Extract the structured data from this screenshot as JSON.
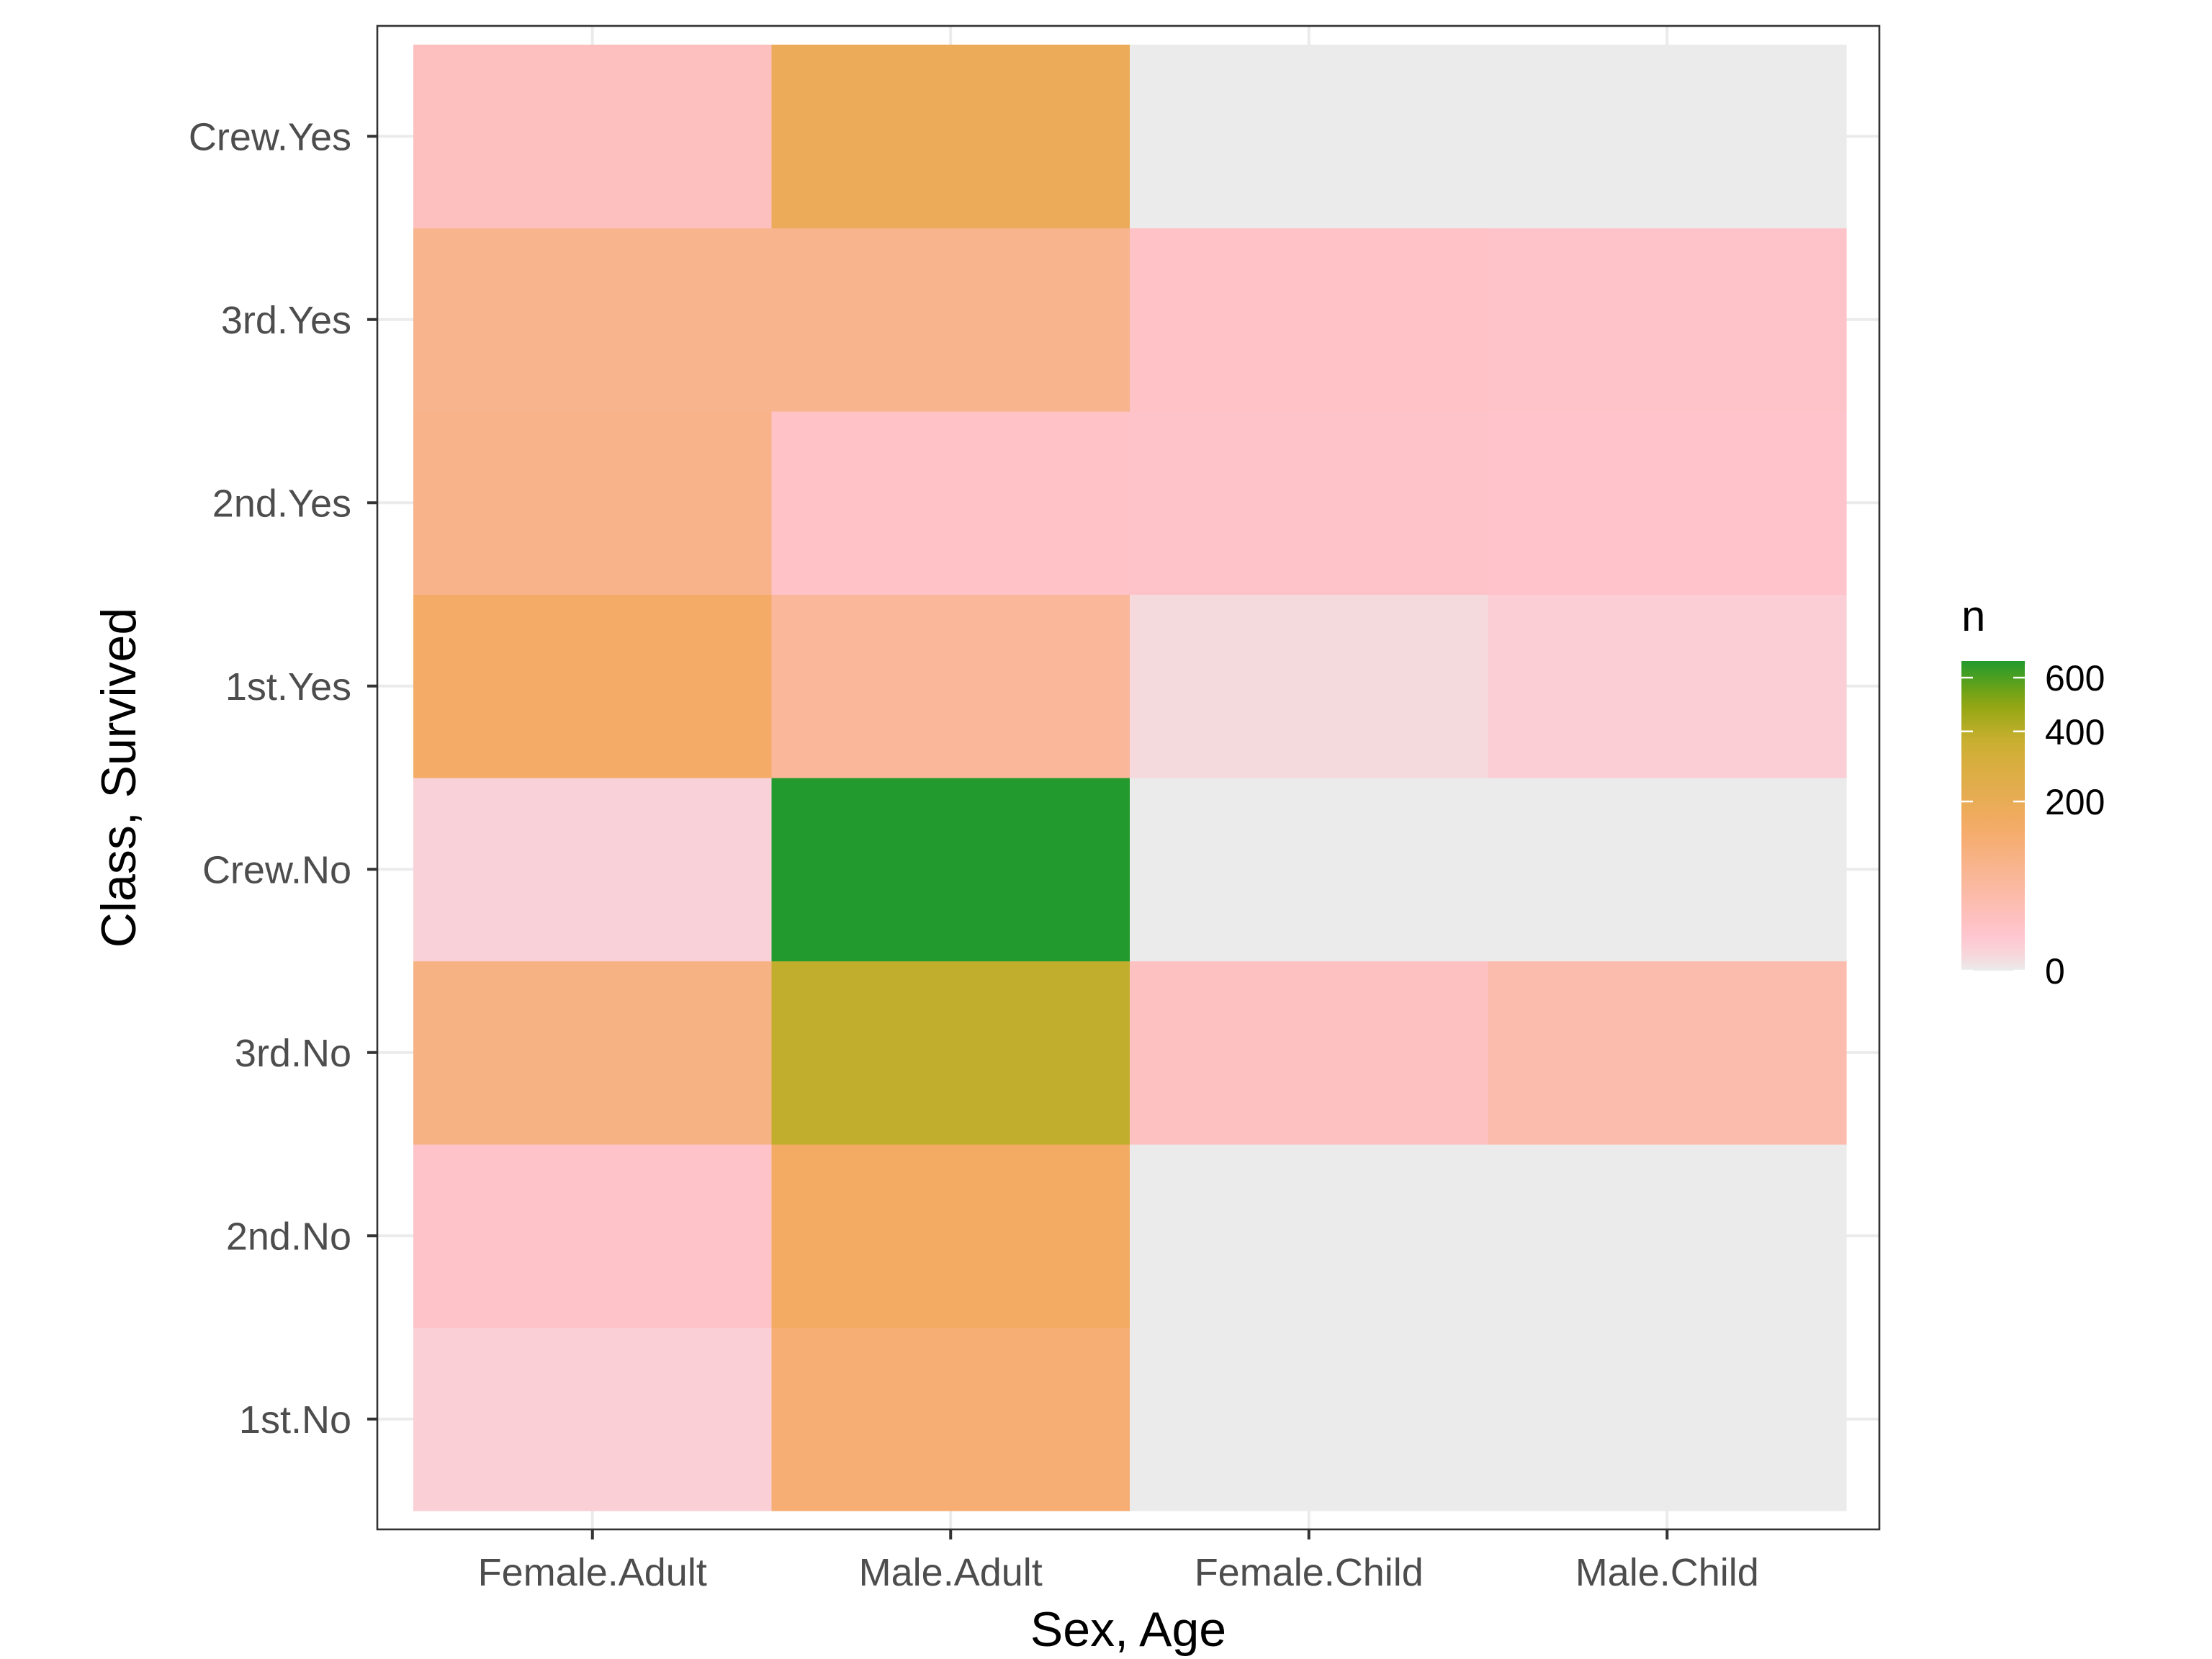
{
  "chart_data": {
    "type": "heatmap",
    "xlabel": "Sex, Age",
    "ylabel": "Class, Survived",
    "x_categories": [
      "Female.Adult",
      "Male.Adult",
      "Female.Child",
      "Male.Child"
    ],
    "y_categories": [
      "1st.No",
      "2nd.No",
      "3rd.No",
      "Crew.No",
      "1st.Yes",
      "2nd.Yes",
      "3rd.Yes",
      "Crew.Yes"
    ],
    "values": [
      [
        4,
        118,
        0,
        0
      ],
      [
        13,
        154,
        0,
        0
      ],
      [
        89,
        387,
        17,
        35
      ],
      [
        3,
        670,
        0,
        0
      ],
      [
        140,
        57,
        1,
        5
      ],
      [
        80,
        14,
        13,
        11
      ],
      [
        76,
        75,
        14,
        13
      ],
      [
        20,
        192,
        0,
        0
      ]
    ],
    "legend": {
      "title": "n",
      "ticks": [
        0,
        200,
        400,
        600
      ],
      "tick_labels": [
        "0",
        "200",
        "400",
        "600"
      ],
      "scale": "sqrt",
      "range": [
        0,
        670
      ],
      "position": "right"
    },
    "grid": true,
    "colors": {
      "zero": "#ebebeb",
      "low": "#ffc0cb",
      "mid": "#f4a460",
      "high_mid": "#9aaa0a",
      "high": "#229a2e"
    }
  }
}
